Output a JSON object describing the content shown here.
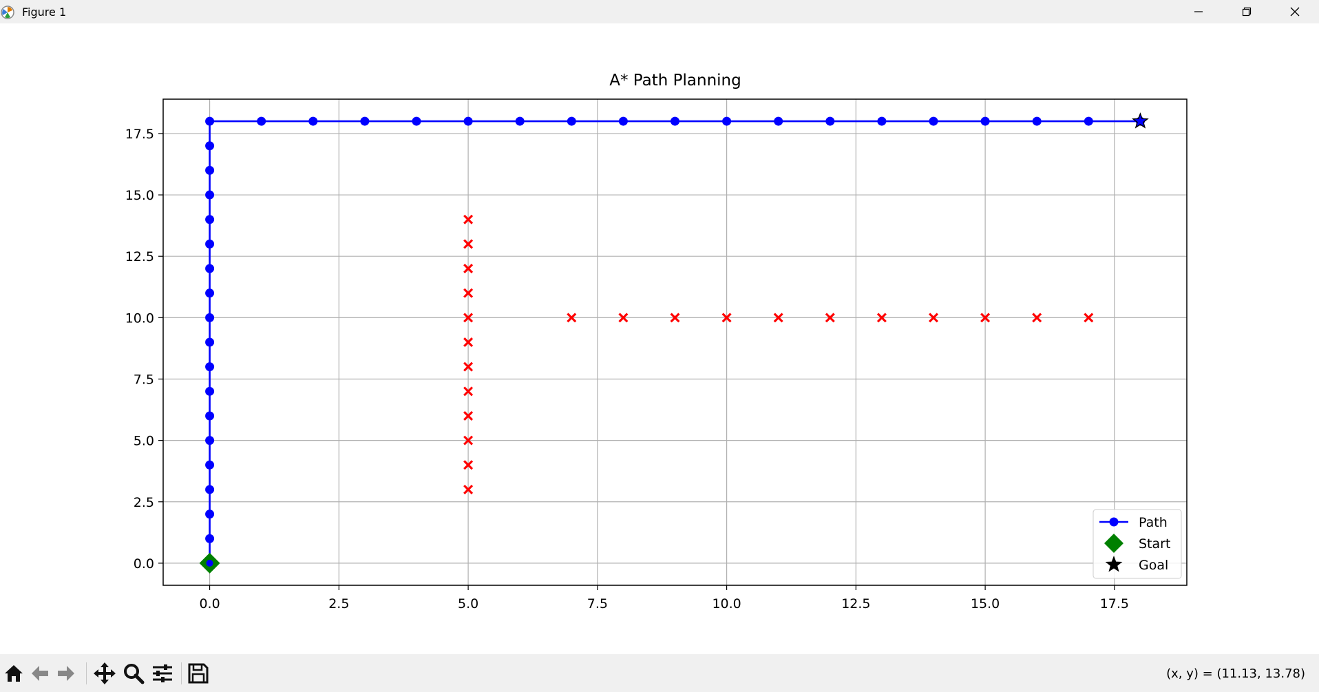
{
  "window": {
    "title": "Figure 1",
    "icon": "matplotlib-icon"
  },
  "toolbar": {
    "buttons": [
      "home-icon",
      "back-icon",
      "forward-icon",
      "pan-icon",
      "zoom-icon",
      "configure-subplots-icon",
      "save-icon"
    ],
    "coords_readout": "(x, y) = (11.13, 13.78)"
  },
  "chart_data": {
    "type": "scatter",
    "title": "A* Path Planning",
    "xlabel": "",
    "ylabel": "",
    "xlim": [
      -0.9,
      18.9
    ],
    "ylim": [
      -0.9,
      18.9
    ],
    "xticks": [
      "0.0",
      "2.5",
      "5.0",
      "7.5",
      "10.0",
      "12.5",
      "15.0",
      "17.5"
    ],
    "yticks": [
      "0.0",
      "2.5",
      "5.0",
      "7.5",
      "10.0",
      "12.5",
      "15.0",
      "17.5"
    ],
    "grid": true,
    "legend_position": "lower right",
    "series": [
      {
        "name": "Path",
        "type": "line",
        "marker": "circle",
        "color": "#0000ff",
        "points": [
          [
            0,
            0
          ],
          [
            0,
            1
          ],
          [
            0,
            2
          ],
          [
            0,
            3
          ],
          [
            0,
            4
          ],
          [
            0,
            5
          ],
          [
            0,
            6
          ],
          [
            0,
            7
          ],
          [
            0,
            8
          ],
          [
            0,
            9
          ],
          [
            0,
            10
          ],
          [
            0,
            11
          ],
          [
            0,
            12
          ],
          [
            0,
            13
          ],
          [
            0,
            14
          ],
          [
            0,
            15
          ],
          [
            0,
            16
          ],
          [
            0,
            17
          ],
          [
            0,
            18
          ],
          [
            1,
            18
          ],
          [
            2,
            18
          ],
          [
            3,
            18
          ],
          [
            4,
            18
          ],
          [
            5,
            18
          ],
          [
            6,
            18
          ],
          [
            7,
            18
          ],
          [
            8,
            18
          ],
          [
            9,
            18
          ],
          [
            10,
            18
          ],
          [
            11,
            18
          ],
          [
            12,
            18
          ],
          [
            13,
            18
          ],
          [
            14,
            18
          ],
          [
            15,
            18
          ],
          [
            16,
            18
          ],
          [
            17,
            18
          ],
          [
            18,
            18
          ]
        ]
      },
      {
        "name": "Start",
        "type": "scatter",
        "marker": "diamond",
        "color": "#008000",
        "points": [
          [
            0,
            0
          ]
        ]
      },
      {
        "name": "Goal",
        "type": "scatter",
        "marker": "star",
        "color": "#000000",
        "points": [
          [
            18,
            18
          ]
        ]
      },
      {
        "name": "",
        "type": "scatter",
        "marker": "x-filled",
        "color": "#ff0000",
        "points": [
          [
            5,
            3
          ],
          [
            5,
            4
          ],
          [
            5,
            5
          ],
          [
            5,
            6
          ],
          [
            5,
            7
          ],
          [
            5,
            8
          ],
          [
            5,
            9
          ],
          [
            5,
            10
          ],
          [
            5,
            11
          ],
          [
            5,
            12
          ],
          [
            5,
            13
          ],
          [
            5,
            14
          ],
          [
            7,
            10
          ],
          [
            8,
            10
          ],
          [
            9,
            10
          ],
          [
            10,
            10
          ],
          [
            11,
            10
          ],
          [
            12,
            10
          ],
          [
            13,
            10
          ],
          [
            14,
            10
          ],
          [
            15,
            10
          ],
          [
            16,
            10
          ],
          [
            17,
            10
          ]
        ]
      }
    ]
  }
}
